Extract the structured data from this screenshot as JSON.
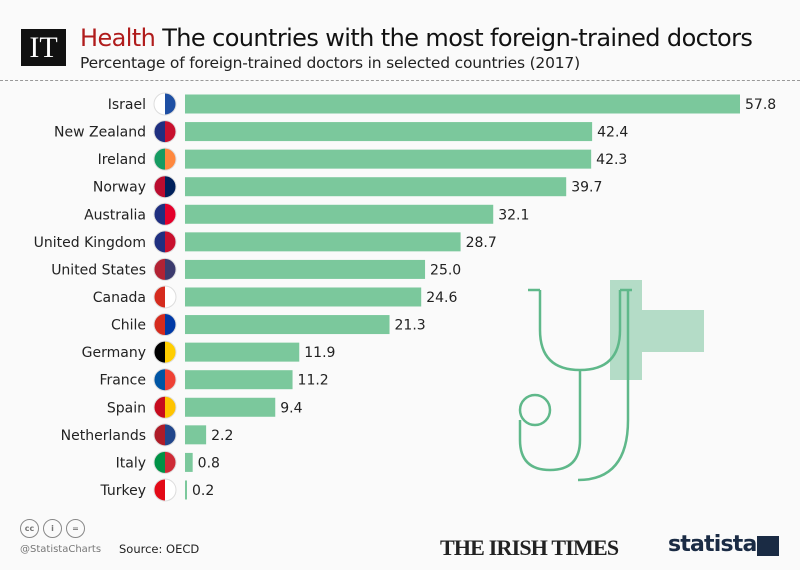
{
  "header": {
    "logo_text": "IT",
    "kicker": "Health",
    "title": "The countries with the most foreign-trained doctors",
    "subtitle": "Percentage of foreign-trained doctors in selected countries (2017)"
  },
  "footer": {
    "handle": "@StatistaCharts",
    "source": "Source: OECD",
    "brand1": "THE IRISH TIMES",
    "brand2": "statista",
    "license_icons": [
      "cc-icon",
      "by-icon",
      "nd-icon"
    ]
  },
  "colors": {
    "bar": "#7bc89c",
    "accent": "#b01c1c",
    "illustration": "#5fb88a"
  },
  "chart_data": {
    "type": "bar",
    "orientation": "horizontal",
    "title": "The countries with the most foreign-trained doctors",
    "subtitle": "Percentage of foreign-trained doctors in selected countries (2017)",
    "categories": [
      "Israel",
      "New Zealand",
      "Ireland",
      "Norway",
      "Australia",
      "United Kingdom",
      "United States",
      "Canada",
      "Chile",
      "Germany",
      "France",
      "Spain",
      "Netherlands",
      "Italy",
      "Turkey"
    ],
    "values": [
      57.8,
      42.4,
      42.3,
      39.7,
      32.1,
      28.7,
      25.0,
      24.6,
      21.3,
      11.9,
      11.2,
      9.4,
      2.2,
      0.8,
      0.2
    ],
    "labels": [
      "57.8",
      "42.4",
      "42.3",
      "39.7",
      "32.1",
      "28.7",
      "25.0",
      "24.6",
      "21.3",
      "11.9",
      "11.2",
      "9.4",
      "2.2",
      "0.8",
      "0.2"
    ],
    "flags": [
      [
        "#fff",
        "#1e4fa3"
      ],
      [
        "#1f2f80",
        "#c8102e"
      ],
      [
        "#169b62",
        "#ff883e"
      ],
      [
        "#ba0c2f",
        "#00205b"
      ],
      [
        "#1f2f80",
        "#e4002b"
      ],
      [
        "#1f2f80",
        "#c8102e"
      ],
      [
        "#b22234",
        "#3c3b6e"
      ],
      [
        "#d52b1e",
        "#fff"
      ],
      [
        "#d52b1e",
        "#0039a6"
      ],
      [
        "#000",
        "#ffce00"
      ],
      [
        "#0055a4",
        "#ef4135"
      ],
      [
        "#c60b1e",
        "#ffc400"
      ],
      [
        "#ae1c28",
        "#21468b"
      ],
      [
        "#009246",
        "#ce2b37"
      ],
      [
        "#e30a17",
        "#fff"
      ]
    ],
    "xlim": [
      0,
      57.8
    ],
    "grid": false,
    "legend": "none"
  }
}
